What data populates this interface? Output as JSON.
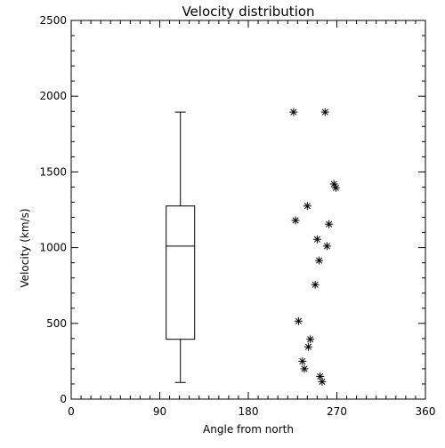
{
  "chart_data": {
    "type": "scatter",
    "title": "Velocity distribution",
    "xlabel": "Angle from north",
    "ylabel": "Velocity (km/s)",
    "xlim": [
      0,
      360
    ],
    "ylim": [
      0,
      2500
    ],
    "x_ticks": [
      0,
      90,
      180,
      270,
      360
    ],
    "y_ticks": [
      0,
      500,
      1000,
      1500,
      2000,
      2500
    ],
    "grid": false,
    "legend": "none",
    "boxplot": {
      "x": 111,
      "min": 110,
      "q1": 395,
      "median": 1010,
      "q3": 1275,
      "max": 1895
    },
    "points": [
      {
        "x": 226,
        "y": 1895
      },
      {
        "x": 258,
        "y": 1895
      },
      {
        "x": 267,
        "y": 1420
      },
      {
        "x": 269,
        "y": 1395
      },
      {
        "x": 240,
        "y": 1275
      },
      {
        "x": 228,
        "y": 1180
      },
      {
        "x": 262,
        "y": 1155
      },
      {
        "x": 250,
        "y": 1055
      },
      {
        "x": 260,
        "y": 1010
      },
      {
        "x": 252,
        "y": 915
      },
      {
        "x": 248,
        "y": 755
      },
      {
        "x": 231,
        "y": 515
      },
      {
        "x": 243,
        "y": 395
      },
      {
        "x": 241,
        "y": 345
      },
      {
        "x": 235,
        "y": 250
      },
      {
        "x": 237,
        "y": 200
      },
      {
        "x": 253,
        "y": 150
      },
      {
        "x": 255,
        "y": 115
      }
    ],
    "marker": "asterisk",
    "color": "#000000"
  }
}
